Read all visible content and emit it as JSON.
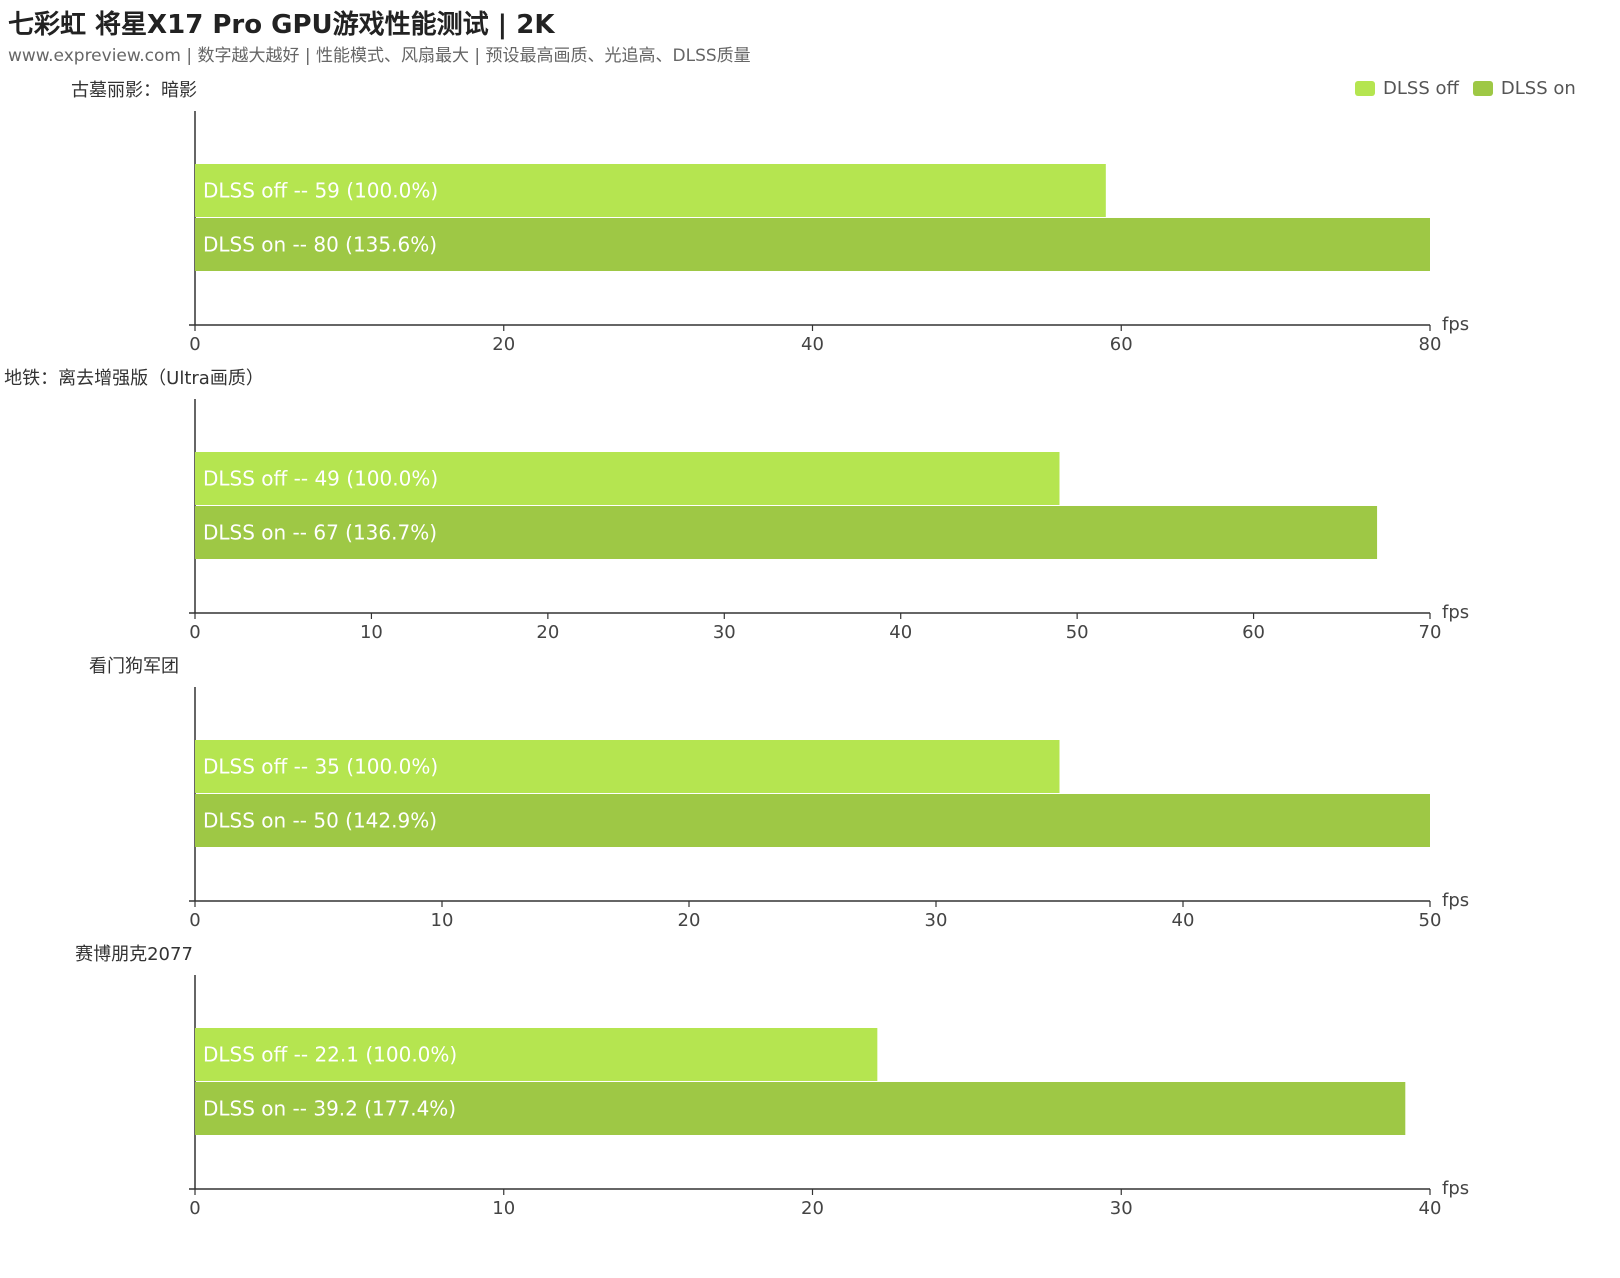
{
  "header": {
    "title": "七彩虹 将星X17 Pro GPU游戏性能测试 | 2K",
    "subtitle": "www.expreview.com | 数字越大越好 | 性能模式、风扇最大 | 预设最高画质、光追高、DLSS质量"
  },
  "legend": [
    {
      "name": "DLSS off",
      "color": "#b5e550"
    },
    {
      "name": "DLSS on",
      "color": "#9ec845"
    }
  ],
  "chart_data": [
    {
      "type": "bar",
      "title": "古墓丽影：暗影",
      "categories": [
        "DLSS off",
        "DLSS on"
      ],
      "values": [
        59,
        80
      ],
      "percents": [
        "100.0%",
        "135.6%"
      ],
      "xlim": [
        0,
        80
      ],
      "ticks": [
        0,
        20,
        40,
        60,
        80
      ],
      "unit": "fps"
    },
    {
      "type": "bar",
      "title": "地铁：离去增强版（Ultra画质）",
      "categories": [
        "DLSS off",
        "DLSS on"
      ],
      "values": [
        49,
        67
      ],
      "percents": [
        "100.0%",
        "136.7%"
      ],
      "xlim": [
        0,
        70
      ],
      "ticks": [
        0,
        10,
        20,
        30,
        40,
        50,
        60,
        70
      ],
      "unit": "fps"
    },
    {
      "type": "bar",
      "title": "看门狗军团",
      "categories": [
        "DLSS off",
        "DLSS on"
      ],
      "values": [
        35,
        50
      ],
      "percents": [
        "100.0%",
        "142.9%"
      ],
      "xlim": [
        0,
        50
      ],
      "ticks": [
        0,
        10,
        20,
        30,
        40,
        50
      ],
      "unit": "fps"
    },
    {
      "type": "bar",
      "title": "赛博朋克2077",
      "categories": [
        "DLSS off",
        "DLSS on"
      ],
      "values": [
        22.1,
        39.2
      ],
      "percents": [
        "100.0%",
        "177.4%"
      ],
      "xlim": [
        0,
        40
      ],
      "ticks": [
        0,
        10,
        20,
        30,
        40
      ],
      "unit": "fps"
    }
  ]
}
